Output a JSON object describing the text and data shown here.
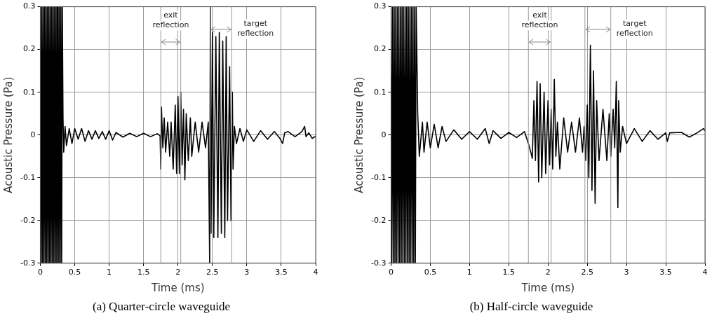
{
  "chart_data": [
    {
      "type": "line",
      "title": "(a)  Quarter-circle  waveguide",
      "xlabel": "Time (ms)",
      "ylabel": "Acoustic Pressure (Pa)",
      "xlim": [
        0,
        4
      ],
      "ylim": [
        -0.3,
        0.3
      ],
      "xticks": [
        0,
        0.5,
        1,
        1.5,
        2,
        2.5,
        3,
        3.5,
        4
      ],
      "yticks": [
        -0.3,
        -0.2,
        -0.1,
        0,
        0.1,
        0.2,
        0.3
      ],
      "grid": true,
      "marker": "none",
      "line_style": "solid",
      "series": [
        {
          "color": "#000000",
          "x": [
            0,
            0.01,
            0.02,
            0.03,
            0.04,
            0.05,
            0.06,
            0.07,
            0.08,
            0.09,
            0.1,
            0.11,
            0.12,
            0.13,
            0.14,
            0.15,
            0.16,
            0.17,
            0.18,
            0.19,
            0.2,
            0.21,
            0.22,
            0.23,
            0.24,
            0.25,
            0.26,
            0.27,
            0.28,
            0.29,
            0.3,
            0.31,
            0.32,
            0.33,
            0.34,
            0.36,
            0.38,
            0.42,
            0.46,
            0.5,
            0.55,
            0.6,
            0.65,
            0.7,
            0.75,
            0.8,
            0.85,
            0.9,
            0.95,
            1.0,
            1.05,
            1.1,
            1.2,
            1.3,
            1.4,
            1.5,
            1.6,
            1.7,
            1.74,
            1.75,
            1.76,
            1.78,
            1.8,
            1.82,
            1.85,
            1.88,
            1.9,
            1.93,
            1.96,
            1.98,
            2.0,
            2.02,
            2.04,
            2.06,
            2.08,
            2.1,
            2.12,
            2.15,
            2.18,
            2.2,
            2.25,
            2.3,
            2.35,
            2.4,
            2.44,
            2.46,
            2.47,
            2.48,
            2.5,
            2.52,
            2.55,
            2.58,
            2.6,
            2.63,
            2.65,
            2.68,
            2.7,
            2.72,
            2.75,
            2.77,
            2.79,
            2.8,
            2.82,
            2.85,
            2.9,
            2.95,
            3.0,
            3.1,
            3.2,
            3.3,
            3.4,
            3.48,
            3.52,
            3.55,
            3.6,
            3.7,
            3.8,
            3.84,
            3.86,
            3.9,
            3.95,
            4.0
          ],
          "values": [
            0.3,
            -0.3,
            0.3,
            -0.3,
            0.3,
            -0.3,
            0.3,
            -0.3,
            0.3,
            -0.3,
            0.3,
            -0.3,
            0.3,
            -0.3,
            0.3,
            -0.3,
            0.3,
            -0.3,
            0.3,
            -0.3,
            0.3,
            -0.3,
            0.3,
            -0.3,
            0.3,
            -0.3,
            0.3,
            -0.3,
            0.3,
            -0.3,
            0.3,
            -0.3,
            0.3,
            0.04,
            -0.04,
            0.02,
            -0.025,
            0.015,
            -0.02,
            0.015,
            -0.01,
            0.015,
            -0.015,
            0.01,
            -0.01,
            0.01,
            -0.008,
            0.008,
            -0.01,
            0.01,
            -0.012,
            0.006,
            -0.005,
            0.004,
            -0.004,
            0.004,
            -0.004,
            0.003,
            -0.002,
            -0.08,
            0.065,
            -0.03,
            0.04,
            -0.04,
            0.03,
            -0.05,
            0.03,
            -0.08,
            0.07,
            -0.09,
            0.09,
            -0.09,
            0.1,
            -0.07,
            0.06,
            -0.105,
            0.05,
            -0.06,
            0.04,
            -0.05,
            0.03,
            -0.04,
            0.03,
            -0.03,
            0.03,
            -0.3,
            0.3,
            -0.23,
            0.24,
            -0.24,
            0.23,
            -0.24,
            0.24,
            -0.23,
            0.22,
            -0.24,
            0.23,
            -0.2,
            0.16,
            -0.2,
            0.1,
            -0.08,
            0.02,
            -0.02,
            0.015,
            -0.015,
            0.012,
            -0.015,
            0.01,
            -0.01,
            0.008,
            -0.008,
            -0.02,
            0.005,
            0.008,
            -0.004,
            0.008,
            0.02,
            -0.004,
            0.005,
            -0.008,
            -0.003
          ]
        }
      ],
      "ref_lines": [
        {
          "axis": "x",
          "value": 1.75,
          "color": "#999999"
        },
        {
          "axis": "x",
          "value": 2.04,
          "color": "#999999"
        },
        {
          "axis": "x",
          "value": 2.47,
          "color": "#999999"
        },
        {
          "axis": "x",
          "value": 2.78,
          "color": "#999999"
        }
      ],
      "annotations": [
        "exit reflection",
        "target reflection"
      ]
    },
    {
      "type": "line",
      "title": "(b)  Half-circle  waveguide",
      "xlabel": "Time (ms)",
      "ylabel": "Acoustic Pressure (Pa)",
      "xlim": [
        0,
        4
      ],
      "ylim": [
        -0.3,
        0.3
      ],
      "xticks": [
        0,
        0.5,
        1,
        1.5,
        2,
        2.5,
        3,
        3.5,
        4
      ],
      "yticks": [
        -0.3,
        -0.2,
        -0.1,
        0,
        0.1,
        0.2,
        0.3
      ],
      "grid": true,
      "marker": "none",
      "line_style": "solid",
      "series": [
        {
          "color": "#000000",
          "x": [
            0,
            0.01,
            0.02,
            0.03,
            0.04,
            0.05,
            0.06,
            0.07,
            0.08,
            0.09,
            0.1,
            0.11,
            0.12,
            0.13,
            0.14,
            0.15,
            0.16,
            0.17,
            0.18,
            0.19,
            0.2,
            0.21,
            0.22,
            0.23,
            0.24,
            0.25,
            0.26,
            0.27,
            0.28,
            0.29,
            0.3,
            0.31,
            0.32,
            0.34,
            0.36,
            0.4,
            0.42,
            0.46,
            0.5,
            0.55,
            0.6,
            0.65,
            0.7,
            0.8,
            0.9,
            1.0,
            1.1,
            1.2,
            1.25,
            1.3,
            1.4,
            1.5,
            1.6,
            1.7,
            1.75,
            1.78,
            1.8,
            1.82,
            1.84,
            1.86,
            1.88,
            1.9,
            1.92,
            1.95,
            1.97,
            2.0,
            2.02,
            2.04,
            2.06,
            2.08,
            2.1,
            2.12,
            2.15,
            2.2,
            2.25,
            2.3,
            2.35,
            2.4,
            2.44,
            2.46,
            2.48,
            2.5,
            2.52,
            2.54,
            2.56,
            2.58,
            2.6,
            2.62,
            2.65,
            2.7,
            2.75,
            2.78,
            2.8,
            2.83,
            2.85,
            2.87,
            2.89,
            2.9,
            2.92,
            2.95,
            3.0,
            3.1,
            3.2,
            3.3,
            3.4,
            3.5,
            3.52,
            3.55,
            3.7,
            3.8,
            3.9,
            3.98,
            4.0
          ],
          "values": [
            0.3,
            -0.3,
            0.3,
            -0.3,
            0.3,
            -0.3,
            0.3,
            -0.3,
            0.3,
            -0.3,
            0.3,
            -0.3,
            0.3,
            -0.3,
            0.3,
            -0.3,
            0.3,
            -0.3,
            0.3,
            -0.3,
            0.3,
            -0.3,
            0.3,
            -0.3,
            0.3,
            -0.3,
            0.3,
            -0.3,
            0.3,
            -0.3,
            0.3,
            -0.3,
            0.3,
            0.05,
            -0.05,
            0.03,
            -0.04,
            0.03,
            -0.03,
            0.025,
            -0.03,
            0.02,
            -0.015,
            0.012,
            -0.01,
            0.008,
            -0.01,
            0.015,
            -0.02,
            0.01,
            -0.008,
            0.006,
            -0.006,
            0.008,
            -0.02,
            -0.04,
            -0.055,
            0.08,
            -0.06,
            0.125,
            -0.11,
            0.12,
            -0.1,
            0.1,
            -0.09,
            0.08,
            -0.07,
            0.06,
            -0.08,
            0.13,
            -0.05,
            0.03,
            -0.08,
            0.04,
            -0.04,
            0.03,
            -0.04,
            0.04,
            -0.04,
            0.02,
            -0.06,
            0.07,
            -0.1,
            0.21,
            -0.13,
            0.15,
            -0.16,
            0.08,
            -0.06,
            0.06,
            -0.06,
            0.05,
            -0.05,
            0.06,
            -0.03,
            0.125,
            -0.17,
            0.08,
            -0.04,
            0.02,
            -0.02,
            0.015,
            -0.015,
            0.01,
            -0.01,
            0.005,
            -0.015,
            0.005,
            0.006,
            -0.005,
            0.005,
            0.015,
            0.01
          ]
        }
      ],
      "ref_lines": [
        {
          "axis": "x",
          "value": 1.75,
          "color": "#999999"
        },
        {
          "axis": "x",
          "value": 2.04,
          "color": "#999999"
        },
        {
          "axis": "x",
          "value": 2.47,
          "color": "#999999"
        },
        {
          "axis": "x",
          "value": 2.8,
          "color": "#999999"
        }
      ],
      "annotations": [
        "exit reflection",
        "target reflection"
      ]
    }
  ]
}
